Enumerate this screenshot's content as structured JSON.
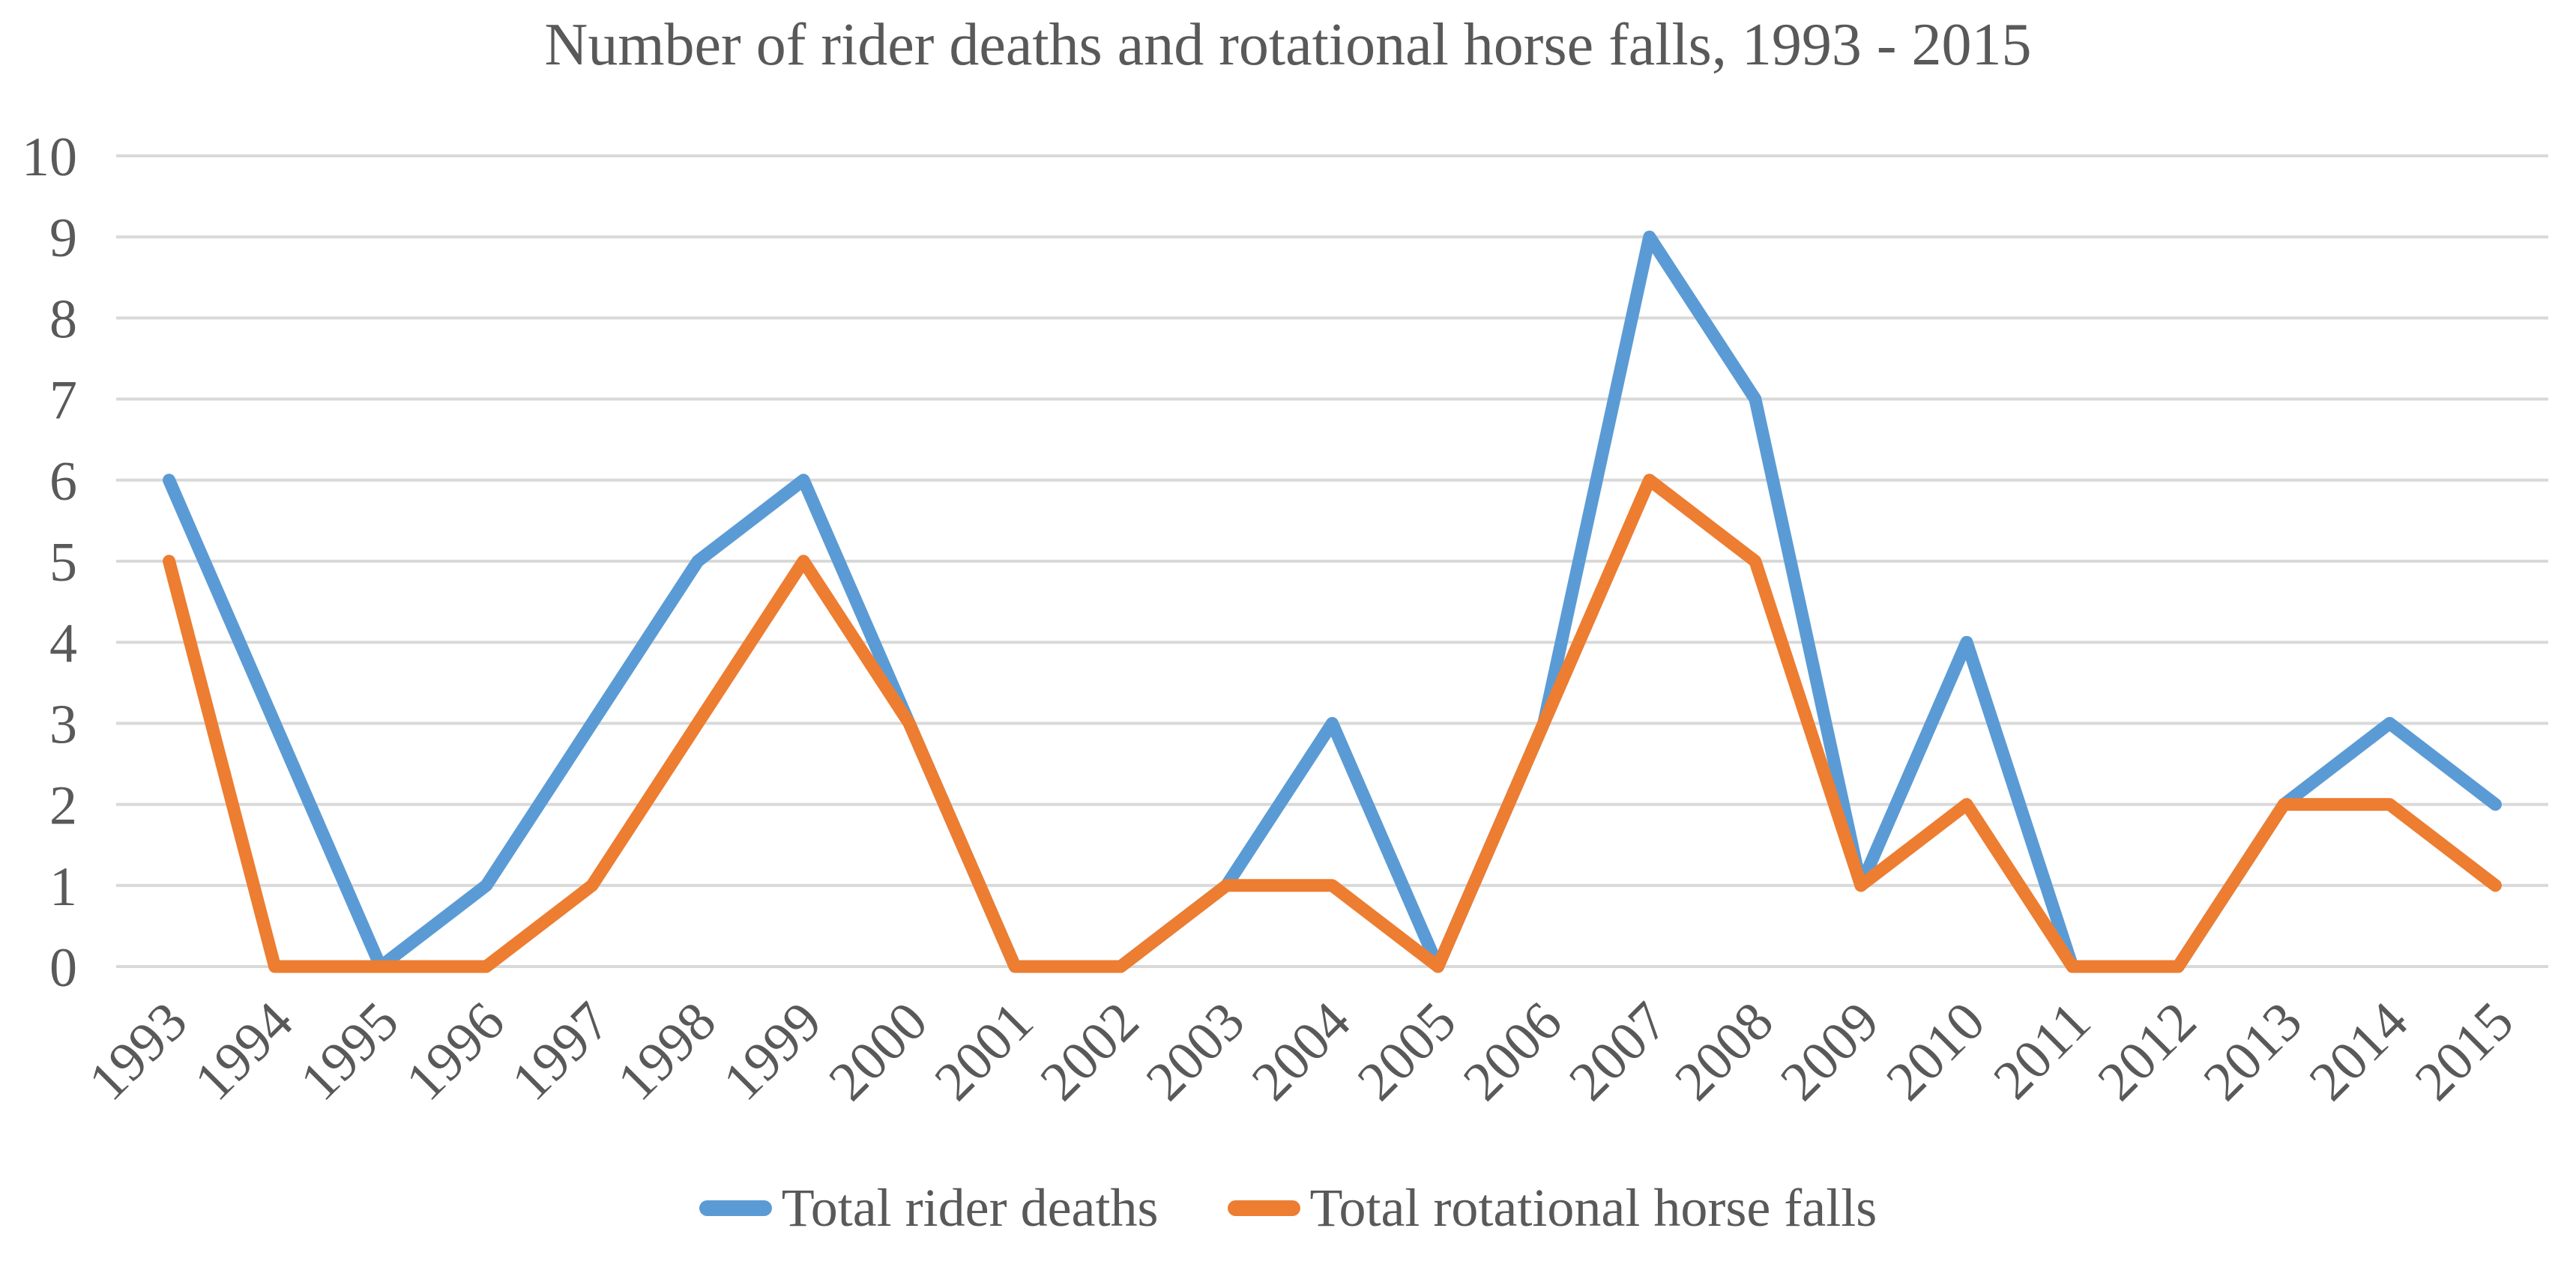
{
  "chart_data": {
    "type": "line",
    "title": "Number of rider deaths and rotational horse falls, 1993 - 2015",
    "categories": [
      "1993",
      "1994",
      "1995",
      "1996",
      "1997",
      "1998",
      "1999",
      "2000",
      "2001",
      "2002",
      "2003",
      "2004",
      "2005",
      "2006",
      "2007",
      "2008",
      "2009",
      "2010",
      "2011",
      "2012",
      "2013",
      "2014",
      "2015"
    ],
    "series": [
      {
        "name": "Total rider deaths",
        "color": "#5B9BD5",
        "values": [
          6,
          3,
          0,
          1,
          3,
          5,
          6,
          3,
          0,
          0,
          1,
          3,
          0,
          3,
          9,
          7,
          1,
          4,
          0,
          0,
          2,
          3,
          2
        ]
      },
      {
        "name": "Total rotational horse falls",
        "color": "#ED7D31",
        "values": [
          5,
          0,
          0,
          0,
          1,
          3,
          5,
          3,
          0,
          0,
          1,
          1,
          0,
          3,
          6,
          5,
          1,
          2,
          0,
          0,
          2,
          2,
          1
        ]
      }
    ],
    "xlabel": "",
    "ylabel": "",
    "ylim": [
      0,
      10
    ],
    "y_ticks": [
      0,
      1,
      2,
      3,
      4,
      5,
      6,
      7,
      8,
      9,
      10
    ],
    "grid": true,
    "legend_position": "bottom",
    "x_tick_rotation_degrees": 45,
    "colors": {
      "gridline": "#D9D9D9",
      "axis_text": "#595959",
      "title_text": "#595959",
      "background": "#FFFFFF"
    }
  }
}
